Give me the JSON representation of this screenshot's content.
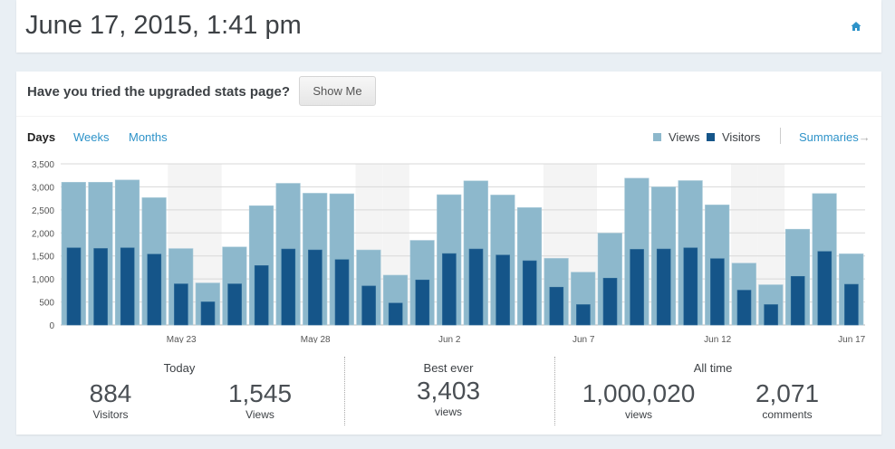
{
  "header": {
    "title": "June 17, 2015, 1:41 pm",
    "home_icon": "home-icon"
  },
  "promo": {
    "text": "Have you tried the upgraded stats page?",
    "button": "Show Me"
  },
  "tabs": [
    "Days",
    "Weeks",
    "Months"
  ],
  "active_tab": "Days",
  "legend": {
    "views": "Views",
    "visitors": "Visitors",
    "summaries": "Summaries"
  },
  "colors": {
    "views": "#8db8cc",
    "visitors": "#155589",
    "weekend": "#f4f4f4",
    "link": "#2e93c9"
  },
  "chart_data": {
    "type": "bar",
    "categories": [
      "May 19",
      "May 20",
      "May 21",
      "May 22",
      "May 23",
      "May 24",
      "May 25",
      "May 26",
      "May 27",
      "May 28",
      "May 29",
      "May 30",
      "May 31",
      "Jun 1",
      "Jun 2",
      "Jun 3",
      "Jun 4",
      "Jun 5",
      "Jun 6",
      "Jun 7",
      "Jun 8",
      "Jun 9",
      "Jun 10",
      "Jun 11",
      "Jun 12",
      "Jun 13",
      "Jun 14",
      "Jun 15",
      "Jun 16",
      "Jun 17"
    ],
    "x_tick_labels": [
      "May 23",
      "May 28",
      "Jun 2",
      "Jun 7",
      "Jun 12",
      "Jun 17"
    ],
    "y_ticks": [
      "0",
      "500",
      "1,000",
      "1,500",
      "2,000",
      "2,500",
      "3,000",
      "3,500"
    ],
    "ylim": [
      0,
      3500
    ],
    "grid": true,
    "legend_position": "top-right",
    "weekends": [
      "May 23",
      "May 24",
      "May 30",
      "May 31",
      "Jun 6",
      "Jun 7",
      "Jun 13",
      "Jun 14"
    ],
    "series": [
      {
        "name": "Views",
        "values": [
          3100,
          3100,
          3150,
          2765,
          1660,
          913,
          1695,
          2590,
          3077,
          2862,
          2850,
          1630,
          1082,
          1838,
          2830,
          3130,
          2823,
          2549,
          1447,
          1147,
          1995,
          3188,
          2999,
          3136,
          2608,
          1343,
          874,
          2080,
          2855,
          1545
        ]
      },
      {
        "name": "Visitors",
        "values": [
          1675,
          1662,
          1675,
          1538,
          893,
          502,
          893,
          1290,
          1650,
          1630,
          1420,
          847,
          476,
          978,
          1551,
          1650,
          1519,
          1395,
          821,
          443,
          1017,
          1643,
          1650,
          1675,
          1441,
          756,
          443,
          1056,
          1597,
          884
        ]
      }
    ]
  },
  "stats": {
    "today": {
      "label": "Today",
      "visitors": "884",
      "visitors_label": "Visitors",
      "views": "1,545",
      "views_label": "Views"
    },
    "best": {
      "label": "Best ever",
      "views": "3,403",
      "views_label": "views"
    },
    "alltime": {
      "label": "All time",
      "views": "1,000,020",
      "views_label": "views",
      "comments": "2,071",
      "comments_label": "comments"
    }
  }
}
